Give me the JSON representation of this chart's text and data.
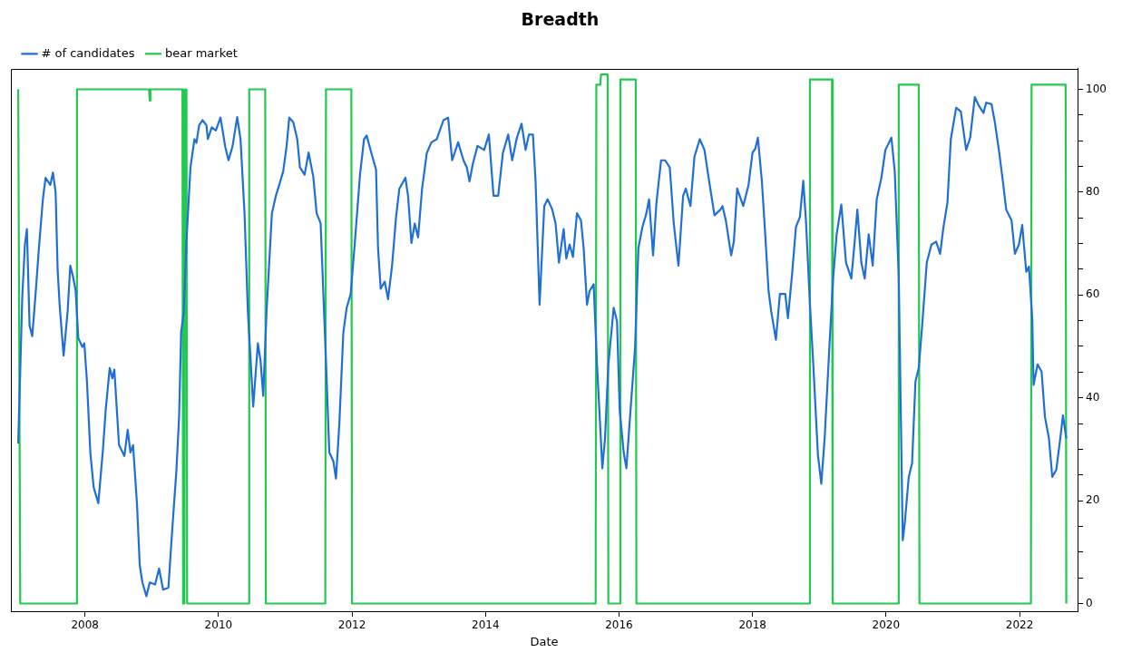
{
  "chart_data": {
    "type": "line",
    "title": "Breadth",
    "xlabel": "Date",
    "xlim": [
      2006.89,
      2022.87
    ],
    "xticks": [
      2008,
      2010,
      2012,
      2014,
      2016,
      2018,
      2020,
      2022
    ],
    "ylim": [
      -1.5,
      104
    ],
    "yticks": [
      0,
      {
        "value": 5,
        "label": null
      },
      {
        "value": 10,
        "label": null
      },
      {
        "value": 15,
        "label": null
      },
      20,
      {
        "value": 25,
        "label": null
      },
      {
        "value": 30,
        "label": null
      },
      {
        "value": 35,
        "label": null
      },
      40,
      {
        "value": 45,
        "label": null
      },
      {
        "value": 50,
        "label": null
      },
      {
        "value": 55,
        "label": null
      },
      60,
      {
        "value": 65,
        "label": null
      },
      {
        "value": 70,
        "label": null
      },
      {
        "value": 75,
        "label": null
      },
      80,
      {
        "value": 85,
        "label": null
      },
      {
        "value": 90,
        "label": null
      },
      {
        "value": 95,
        "label": null
      },
      100
    ],
    "grid": false,
    "legend": "top left",
    "marker": "none",
    "series": [
      {
        "name": "# of candidates",
        "color": "#1f6fd6",
        "x": [
          2007.0,
          2007.06,
          2007.1,
          2007.13,
          2007.17,
          2007.21,
          2007.26,
          2007.31,
          2007.37,
          2007.41,
          2007.48,
          2007.52,
          2007.56,
          2007.59,
          2007.62,
          2007.68,
          2007.74,
          2007.78,
          2007.82,
          2007.86,
          2007.9,
          2007.96,
          2007.99,
          2008.03,
          2008.08,
          2008.13,
          2008.2,
          2008.27,
          2008.31,
          2008.37,
          2008.41,
          2008.44,
          2008.51,
          2008.59,
          2008.64,
          2008.68,
          2008.72,
          2008.78,
          2008.82,
          2008.86,
          2008.92,
          2008.97,
          2009.05,
          2009.11,
          2009.17,
          2009.25,
          2009.3,
          2009.37,
          2009.41,
          2009.44,
          2009.48,
          2009.52,
          2009.58,
          2009.64,
          2009.67,
          2009.71,
          2009.76,
          2009.82,
          2009.84,
          2009.9,
          2009.96,
          2010.03,
          2010.1,
          2010.15,
          2010.21,
          2010.28,
          2010.33,
          2010.39,
          2010.44,
          2010.52,
          2010.59,
          2010.63,
          2010.67,
          2010.72,
          2010.8,
          2010.86,
          2010.91,
          2010.97,
          2011.02,
          2011.06,
          2011.12,
          2011.18,
          2011.22,
          2011.29,
          2011.35,
          2011.42,
          2011.47,
          2011.53,
          2011.6,
          2011.66,
          2011.72,
          2011.76,
          2011.81,
          2011.87,
          2011.92,
          2011.98,
          2012.04,
          2012.12,
          2012.18,
          2012.22,
          2012.29,
          2012.36,
          2012.39,
          2012.43,
          2012.49,
          2012.54,
          2012.6,
          2012.66,
          2012.71,
          2012.8,
          2012.84,
          2012.89,
          2012.94,
          2012.99,
          2013.05,
          2013.12,
          2013.19,
          2013.27,
          2013.37,
          2013.44,
          2013.5,
          2013.59,
          2013.67,
          2013.72,
          2013.76,
          2013.81,
          2013.88,
          2013.98,
          2014.05,
          2014.12,
          2014.19,
          2014.26,
          2014.34,
          2014.4,
          2014.47,
          2014.54,
          2014.6,
          2014.65,
          2014.71,
          2014.75,
          2014.81,
          2014.88,
          2014.93,
          2015.0,
          2015.05,
          2015.1,
          2015.17,
          2015.21,
          2015.26,
          2015.31,
          2015.37,
          2015.43,
          2015.47,
          2015.52,
          2015.56,
          2015.62,
          2015.67,
          2015.75,
          2015.79,
          2015.84,
          2015.92,
          2015.97,
          2016.01,
          2016.07,
          2016.11,
          2016.18,
          2016.24,
          2016.29,
          2016.35,
          2016.41,
          2016.45,
          2016.51,
          2016.56,
          2016.63,
          2016.69,
          2016.76,
          2016.82,
          2016.89,
          2016.96,
          2017.0,
          2017.07,
          2017.13,
          2017.21,
          2017.28,
          2017.35,
          2017.43,
          2017.52,
          2017.55,
          2017.6,
          2017.68,
          2017.72,
          2017.77,
          2017.86,
          2017.94,
          2018.0,
          2018.04,
          2018.08,
          2018.14,
          2018.19,
          2018.24,
          2018.28,
          2018.35,
          2018.41,
          2018.49,
          2018.53,
          2018.59,
          2018.65,
          2018.71,
          2018.76,
          2018.8,
          2018.86,
          2018.91,
          2018.98,
          2019.03,
          2019.08,
          2019.15,
          2019.21,
          2019.26,
          2019.33,
          2019.4,
          2019.48,
          2019.53,
          2019.57,
          2019.63,
          2019.68,
          2019.74,
          2019.8,
          2019.86,
          2019.93,
          2019.99,
          2020.08,
          2020.13,
          2020.19,
          2020.23,
          2020.25,
          2020.28,
          2020.34,
          2020.39,
          2020.44,
          2020.49,
          2020.54,
          2020.61,
          2020.68,
          2020.75,
          2020.81,
          2020.86,
          2020.92,
          2020.97,
          2021.05,
          2021.12,
          2021.2,
          2021.26,
          2021.33,
          2021.39,
          2021.46,
          2021.5,
          2021.58,
          2021.63,
          2021.69,
          2021.75,
          2021.8,
          2021.88,
          2021.93,
          2021.99,
          2022.04,
          2022.1,
          2022.14,
          2022.19,
          2022.21,
          2022.27,
          2022.33,
          2022.38,
          2022.44,
          2022.49,
          2022.55,
          2022.61,
          2022.65,
          2022.7
        ],
        "values": [
          31.1,
          59.5,
          69.8,
          72.8,
          54.0,
          52.0,
          60.2,
          69.1,
          78.7,
          82.8,
          81.4,
          83.8,
          80.0,
          65.0,
          58.1,
          48.2,
          56.8,
          65.7,
          63.6,
          60.9,
          51.6,
          49.9,
          50.6,
          43.1,
          29.4,
          22.6,
          19.5,
          30.1,
          37.6,
          45.8,
          43.8,
          45.5,
          30.8,
          28.7,
          33.8,
          29.4,
          30.8,
          19.1,
          7.5,
          4.1,
          1.4,
          4.1,
          3.7,
          6.8,
          2.7,
          3.1,
          13.0,
          26.0,
          36.3,
          52.7,
          56.8,
          70.4,
          84.8,
          90.3,
          89.6,
          93.0,
          94.0,
          93.0,
          90.3,
          92.6,
          92.0,
          94.5,
          88.9,
          86.2,
          88.9,
          94.6,
          90.3,
          75.9,
          56.8,
          38.3,
          50.6,
          47.2,
          40.4,
          56.8,
          75.9,
          79.3,
          81.4,
          84.1,
          88.9,
          94.5,
          93.6,
          90.3,
          84.8,
          83.4,
          87.7,
          83.0,
          75.9,
          73.9,
          50.6,
          29.4,
          27.7,
          24.3,
          34.9,
          52.7,
          57.5,
          60.2,
          69.8,
          83.4,
          90.3,
          91.0,
          87.6,
          84.4,
          69.1,
          61.2,
          62.6,
          59.2,
          65.7,
          75.2,
          80.7,
          82.8,
          79.2,
          70.1,
          73.9,
          71.2,
          80.7,
          87.6,
          89.7,
          90.3,
          94.0,
          94.5,
          86.2,
          89.7,
          86.2,
          84.8,
          82.1,
          85.5,
          89.0,
          88.2,
          91.2,
          79.3,
          79.3,
          87.6,
          91.2,
          86.2,
          90.6,
          93.3,
          88.2,
          91.2,
          91.2,
          82.1,
          58.1,
          77.3,
          78.6,
          76.6,
          73.9,
          66.3,
          72.8,
          67.1,
          69.8,
          67.4,
          75.9,
          74.5,
          69.1,
          58.1,
          60.8,
          62.1,
          46.5,
          26.3,
          32.1,
          46.5,
          57.5,
          54.9,
          37.6,
          29.4,
          26.3,
          39.0,
          49.7,
          69.1,
          73.2,
          75.9,
          78.6,
          67.7,
          77.9,
          86.2,
          86.2,
          84.8,
          73.9,
          65.7,
          79.3,
          80.7,
          77.3,
          86.9,
          90.3,
          88.2,
          82.1,
          75.5,
          76.6,
          77.3,
          74.5,
          67.7,
          70.4,
          80.7,
          77.3,
          81.4,
          87.7,
          88.4,
          90.6,
          82.1,
          71.8,
          60.8,
          56.8,
          51.3,
          60.2,
          60.2,
          55.5,
          63.7,
          73.2,
          75.2,
          82.2,
          74.5,
          58.1,
          46.5,
          28.8,
          23.3,
          32.1,
          49.7,
          63.7,
          71.8,
          77.6,
          66.3,
          63.2,
          70.4,
          76.6,
          66.3,
          63.2,
          71.8,
          65.7,
          78.6,
          82.8,
          88.2,
          90.6,
          84.1,
          63.7,
          29.4,
          12.3,
          15.6,
          24.6,
          27.3,
          43.1,
          45.8,
          53.9,
          66.3,
          69.8,
          70.4,
          68.0,
          73.2,
          78.0,
          90.3,
          96.4,
          95.7,
          88.2,
          90.6,
          98.5,
          96.8,
          95.4,
          97.4,
          97.1,
          93.6,
          88.2,
          82.1,
          76.6,
          74.5,
          68.0,
          69.8,
          73.6,
          64.5,
          65.5,
          55.5,
          42.5,
          46.5,
          45.1,
          36.3,
          32.1,
          24.6,
          26.0,
          32.1,
          36.6,
          32.1
        ]
      },
      {
        "name": "bear market",
        "color": "#22c94f",
        "x": [
          2007.0,
          2007.03,
          2007.87,
          2007.88,
          2008.96,
          2008.97,
          2008.98,
          2009.46,
          2009.47,
          2009.49,
          2009.5,
          2009.52,
          2009.53,
          2010.45,
          2010.46,
          2010.7,
          2010.71,
          2011.6,
          2011.61,
          2011.99,
          2012.0,
          2015.65,
          2015.66,
          2015.72,
          2015.73,
          2015.83,
          2015.84,
          2016.01,
          2016.02,
          2016.25,
          2016.26,
          2018.85,
          2018.86,
          2019.19,
          2019.2,
          2020.18,
          2020.19,
          2020.49,
          2020.5,
          2022.17,
          2022.18,
          2022.69,
          2022.7
        ],
        "values": [
          100,
          0,
          0,
          100,
          100,
          97.8,
          100,
          100,
          0,
          0,
          100,
          100,
          0,
          0,
          100,
          100,
          0,
          0,
          100,
          100,
          0,
          0,
          100.9,
          100.9,
          102.9,
          102.9,
          0,
          0,
          101.9,
          101.9,
          0,
          0,
          101.9,
          101.9,
          0,
          0,
          100.9,
          100.9,
          0,
          0,
          100.9,
          100.9,
          0
        ]
      }
    ]
  }
}
